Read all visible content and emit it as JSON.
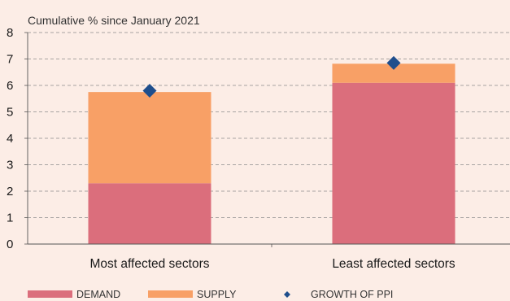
{
  "chart_data": {
    "type": "bar",
    "stacked": true,
    "title": "",
    "axis_unit_label": "Cumulative % since January 2021",
    "xlabel": "",
    "ylabel": "",
    "categories": [
      "Most affected sectors",
      "Least affected sectors"
    ],
    "ylim": [
      0,
      8
    ],
    "yticks": [
      "0",
      "1",
      "2",
      "3",
      "4",
      "5",
      "6",
      "7",
      "8"
    ],
    "grid": true,
    "legend_position": "bottom",
    "series": [
      {
        "name": "DEMAND",
        "kind": "bar",
        "color": "#db6e7c",
        "values": [
          2.3,
          6.1
        ]
      },
      {
        "name": "SUPPLY",
        "kind": "bar",
        "color": "#f8a066",
        "values": [
          3.45,
          0.72
        ]
      },
      {
        "name": "GROWTH OF PPI",
        "kind": "marker",
        "marker": "diamond",
        "color": "#1f4e8c",
        "values": [
          5.8,
          6.85
        ]
      }
    ]
  }
}
